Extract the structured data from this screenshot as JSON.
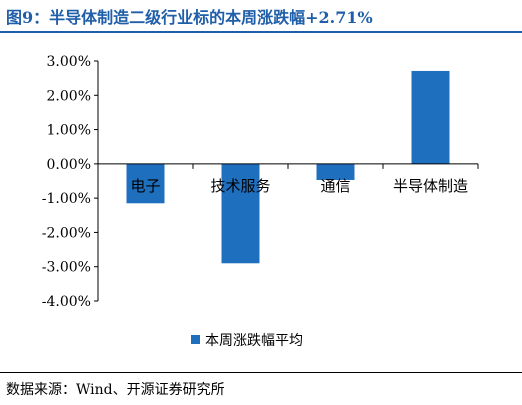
{
  "figure": {
    "title": "图9：半导体制造二级行业标的本周涨跌幅+2.71%",
    "source": "数据来源：Wind、开源证券研究所"
  },
  "colors": {
    "accent": "#1f5ea8",
    "bar": "#1f6fbf"
  },
  "chart_data": {
    "type": "bar",
    "categories": [
      "电子",
      "技术服务",
      "通信",
      "半导体制造"
    ],
    "series": [
      {
        "name": "本周涨跌幅平均",
        "values": [
          -1.15,
          -2.9,
          -0.47,
          2.71
        ]
      }
    ],
    "ylim": [
      -4.0,
      3.0
    ],
    "yticks": [
      "3.00%",
      "2.00%",
      "1.00%",
      "0.00%",
      "-1.00%",
      "-2.00%",
      "-3.00%",
      "-4.00%"
    ],
    "ytick_values": [
      3,
      2,
      1,
      0,
      -1,
      -2,
      -3,
      -4
    ],
    "legend": "bottom-center",
    "grid": false
  }
}
